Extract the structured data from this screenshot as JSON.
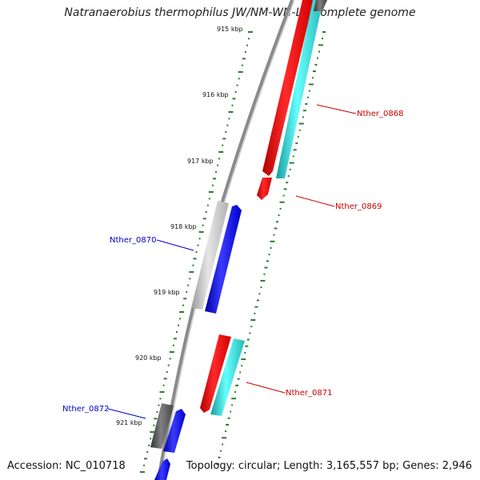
{
  "title": "Natranaerobius thermophilus JW/NM-WN-LF, complete genome",
  "accession": "Accession: NC_010718",
  "summary": "Topology: circular; Length: 3,165,557 bp; Genes: 2,946",
  "ticks": [
    "915 kbp",
    "916 kbp",
    "917 kbp",
    "918 kbp",
    "919 kbp",
    "920 kbp",
    "921 kbp"
  ],
  "labels": {
    "nther_0868": "Nther_0868",
    "nther_0869": "Nther_0869",
    "nther_0870": "Nther_0870",
    "nther_0871": "Nther_0871",
    "nther_0872": "Nther_0872"
  },
  "colors": {
    "reverse_gene": "#ff0000",
    "reverse_cds": "#33cccc",
    "forward_gene": "#0000ff",
    "forward_cds_grey": "#bbbbbb",
    "forward_cds_dark": "#555555",
    "backbone": "#888888",
    "gc_ticks": "#2d7d2d",
    "forward_label": "#0000cc",
    "reverse_label": "#cc0000"
  }
}
